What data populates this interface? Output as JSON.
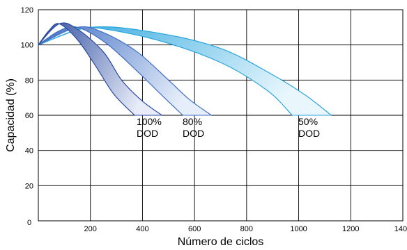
{
  "chart_data": {
    "type": "area",
    "xlabel": "Número de ciclos",
    "ylabel": "Capacidad (%)",
    "xlim": [
      0,
      1400
    ],
    "ylim": [
      0,
      120
    ],
    "x_ticks": [
      "0",
      "200",
      "400",
      "600",
      "800",
      "1000",
      "1200",
      "1400"
    ],
    "y_ticks": [
      "0",
      "20",
      "40",
      "60",
      "80",
      "100",
      "120"
    ],
    "grid": true,
    "series": [
      {
        "label_lines": [
          "100%",
          "DOD"
        ],
        "color_dark": "#2b4a9e",
        "color_light": "#e8ecf8",
        "upper": [
          [
            0,
            100
          ],
          [
            80,
            112
          ],
          [
            150,
            109
          ],
          [
            250,
            96
          ],
          [
            320,
            80
          ],
          [
            400,
            68
          ],
          [
            475,
            60
          ]
        ],
        "lower": [
          [
            0,
            100
          ],
          [
            40,
            108
          ],
          [
            80,
            112
          ],
          [
            150,
            103
          ],
          [
            220,
            88
          ],
          [
            290,
            72
          ],
          [
            370,
            60
          ]
        ],
        "bottom": 60
      },
      {
        "label_lines": [
          "80%",
          "DOD"
        ],
        "color_dark": "#3f6ec4",
        "color_light": "#e6eefa",
        "upper": [
          [
            0,
            100
          ],
          [
            150,
            110
          ],
          [
            250,
            107
          ],
          [
            380,
            96
          ],
          [
            500,
            80
          ],
          [
            580,
            69
          ],
          [
            665,
            60
          ]
        ],
        "lower": [
          [
            0,
            100
          ],
          [
            80,
            108
          ],
          [
            150,
            110
          ],
          [
            260,
            101
          ],
          [
            380,
            85
          ],
          [
            470,
            72
          ],
          [
            555,
            60
          ]
        ],
        "bottom": 60
      },
      {
        "label_lines": [
          "50%",
          "DOD"
        ],
        "color_dark": "#2aa5dc",
        "color_light": "#e9f7fd",
        "upper": [
          [
            0,
            100
          ],
          [
            200,
            110
          ],
          [
            450,
            107
          ],
          [
            700,
            98
          ],
          [
            900,
            83
          ],
          [
            1030,
            71
          ],
          [
            1125,
            60
          ]
        ],
        "lower": [
          [
            0,
            100
          ],
          [
            120,
            107
          ],
          [
            200,
            110
          ],
          [
            450,
            103
          ],
          [
            700,
            90
          ],
          [
            880,
            74
          ],
          [
            975,
            60
          ]
        ],
        "bottom": 60
      }
    ]
  }
}
